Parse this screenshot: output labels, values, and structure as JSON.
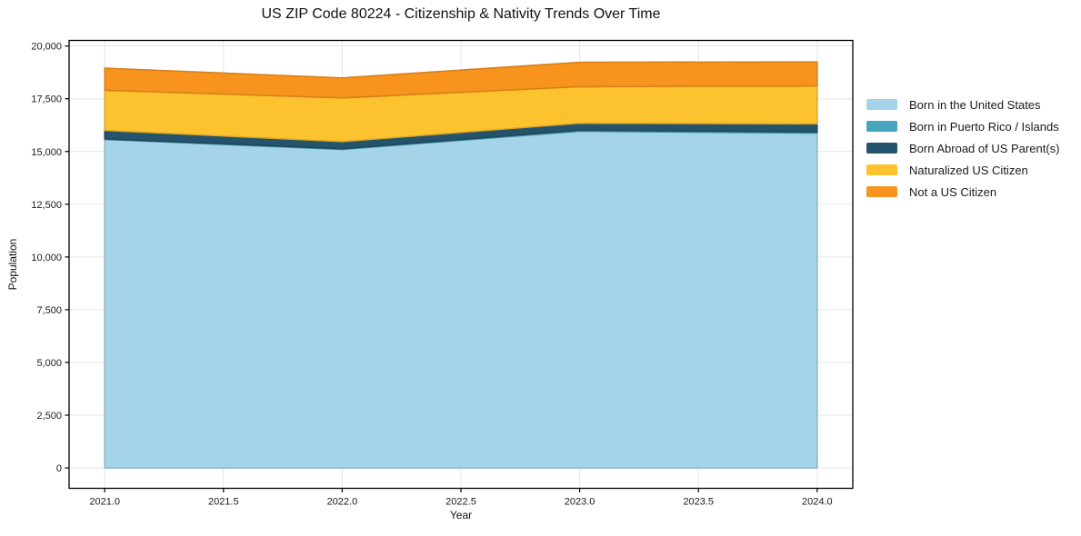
{
  "chart_data": {
    "type": "area",
    "stacked": true,
    "title": "US ZIP Code 80224 - Citizenship & Nativity Trends Over Time",
    "xlabel": "Year",
    "ylabel": "Population",
    "x": [
      2021,
      2022,
      2023,
      2024
    ],
    "series": [
      {
        "name": "Born in the United States",
        "color": "#a5d3e8",
        "values": [
          15570,
          15100,
          15960,
          15870
        ]
      },
      {
        "name": "Born in Puerto Rico / Islands",
        "color": "#45a5bd",
        "values": [
          30,
          30,
          50,
          60
        ]
      },
      {
        "name": "Born Abroad of US Parent(s)",
        "color": "#24536b",
        "values": [
          400,
          340,
          330,
          380
        ]
      },
      {
        "name": "Naturalized US Citizen",
        "color": "#fdc32e",
        "values": [
          1900,
          2070,
          1730,
          1800
        ]
      },
      {
        "name": "Not a US Citizen",
        "color": "#f8941d",
        "values": [
          1050,
          950,
          1160,
          1140
        ]
      }
    ],
    "totals": [
      18950,
      18490,
      19230,
      19250
    ],
    "xticks": {
      "values": [
        2021.0,
        2021.5,
        2022.0,
        2022.5,
        2023.0,
        2023.5,
        2024.0
      ],
      "labels": [
        "2021.0",
        "2021.5",
        "2022.0",
        "2022.5",
        "2023.0",
        "2023.5",
        "2024.0"
      ]
    },
    "yticks": {
      "values": [
        0,
        2500,
        5000,
        7500,
        10000,
        12500,
        15000,
        17500,
        20000
      ],
      "labels": [
        "0",
        "2,500",
        "5,000",
        "7,500",
        "10,000",
        "12,500",
        "15,000",
        "17,500",
        "20,000"
      ]
    },
    "xlim": [
      2020.85,
      2024.15
    ],
    "ylim": [
      -965,
      20265
    ],
    "grid": true,
    "legend_position": "right-outside",
    "colors": {
      "background": "#ffffff",
      "gridline": "#e6e6e6",
      "spine": "#000000",
      "text": "#1a1a1a"
    }
  }
}
